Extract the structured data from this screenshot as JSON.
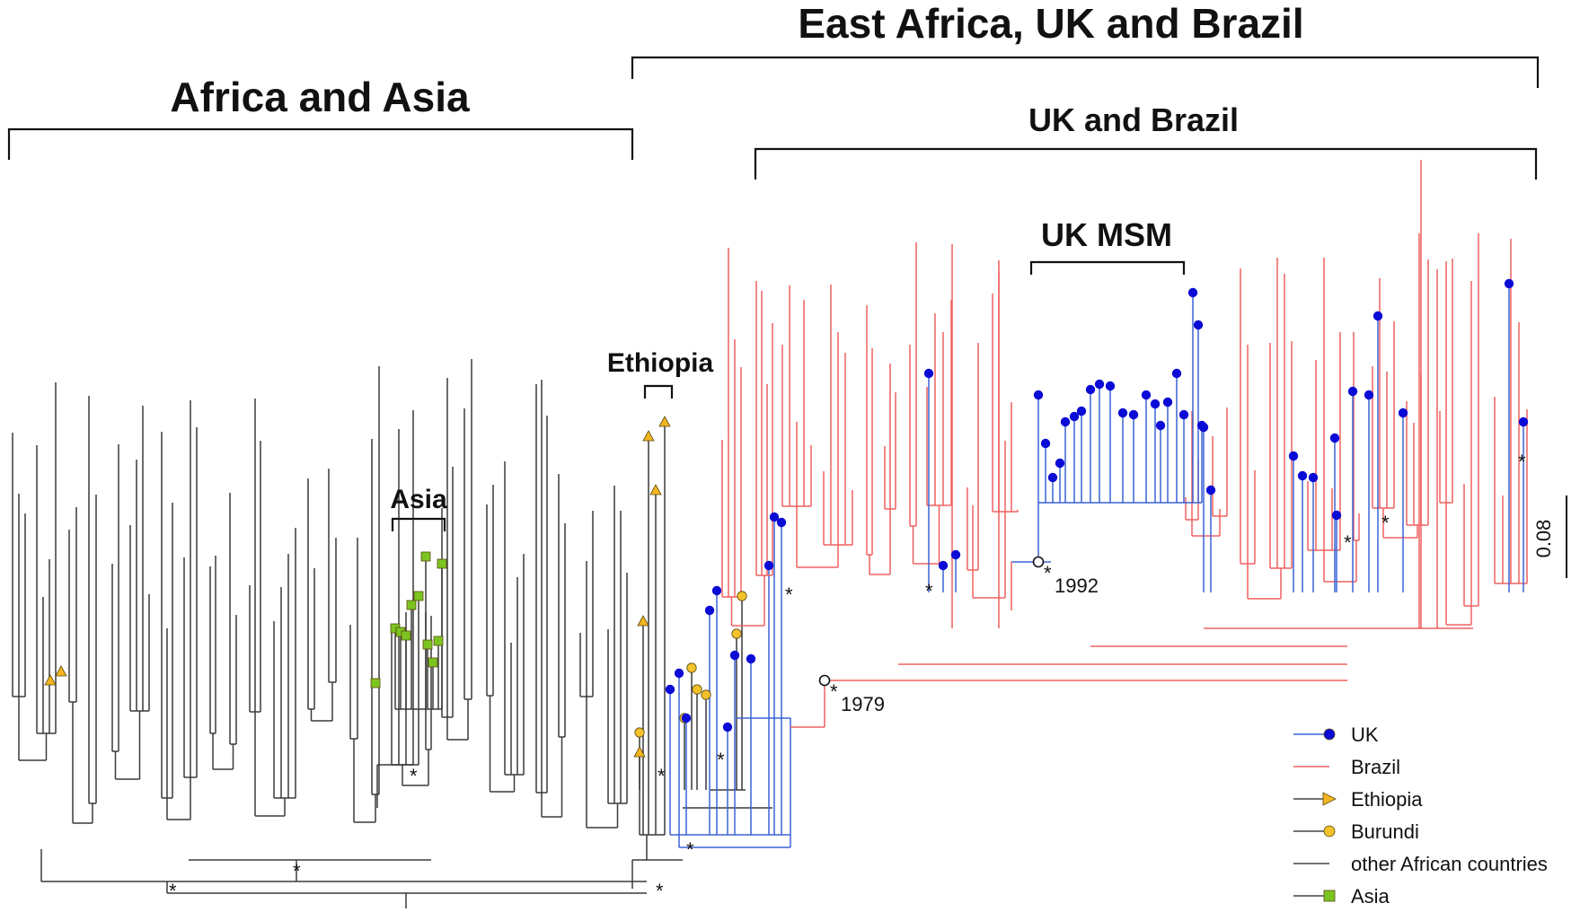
{
  "labels": {
    "clade_top": "East Africa, UK and Brazil",
    "clade_left": "Africa and Asia",
    "clade_uk_brazil": "UK and Brazil",
    "clade_uk_msm": "UK MSM",
    "clade_ethiopia": "Ethiopia",
    "clade_asia": "Asia"
  },
  "dates": {
    "node_1979": "1979",
    "node_1992": "1992"
  },
  "support_marker": "*",
  "scale": {
    "label": "0.08",
    "value": 0.08
  },
  "legend": [
    {
      "label": "UK",
      "color": "#0b0bd6",
      "marker": "circle",
      "line": "#3b63d6"
    },
    {
      "label": "Brazil",
      "color": "#f06060",
      "marker": "none",
      "line": "#f06060"
    },
    {
      "label": "Ethiopia",
      "color": "#f3b51f",
      "marker": "triangle",
      "line": "#444444"
    },
    {
      "label": "Burundi",
      "color": "#f3c12a",
      "marker": "circle",
      "line": "#444444"
    },
    {
      "label": "other African countries",
      "color": "#444444",
      "marker": "none",
      "line": "#444444"
    },
    {
      "label": "Asia",
      "color": "#7cc420",
      "marker": "square",
      "line": "#444444"
    }
  ],
  "colors": {
    "black_branch": "#3a3a3a",
    "uk_branch": "#3b63d6",
    "brazil_branch": "#f06060",
    "uk_tip": "#0b0bd6",
    "ethiopia_tip": "#f3b51f",
    "burundi_tip": "#f3c12a",
    "asia_tip": "#7cc420"
  }
}
